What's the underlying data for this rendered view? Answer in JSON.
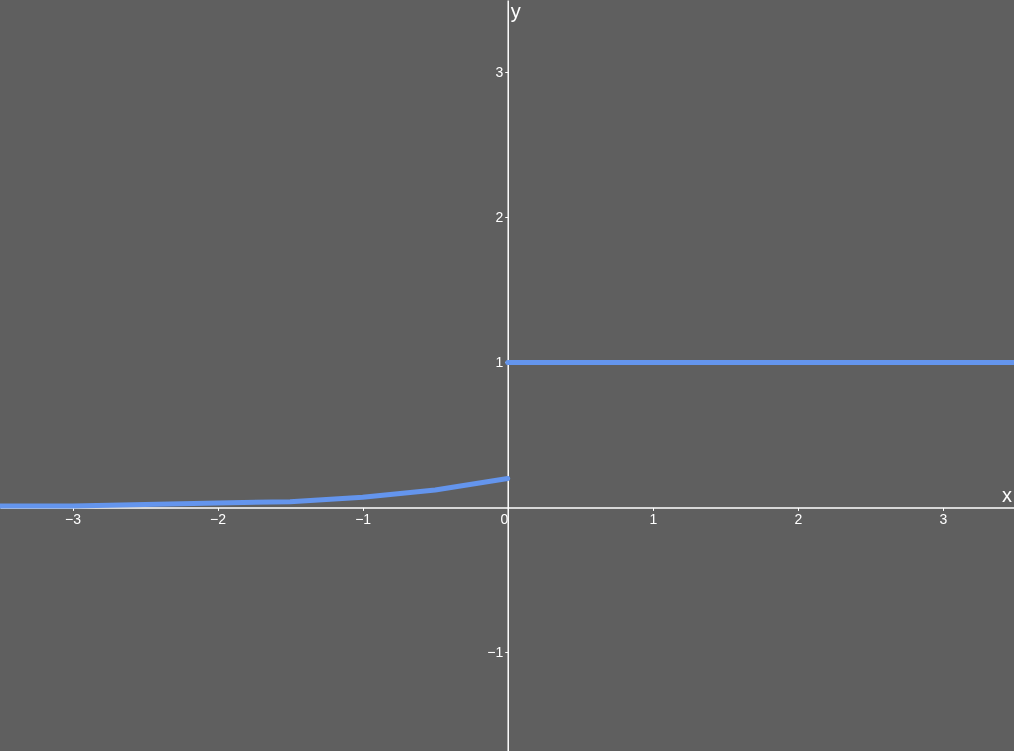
{
  "chart_data": {
    "type": "line",
    "xlabel": "x",
    "ylabel": "y",
    "xlim": [
      -3.5,
      3.49
    ],
    "ylim": [
      -1.68,
      3.5
    ],
    "xticks": [
      -3,
      -2,
      -1,
      0,
      1,
      2,
      3
    ],
    "yticks": [
      -1,
      1,
      2,
      3
    ],
    "series": [
      {
        "color": "#6495ed",
        "x": [
          -3.5,
          -3,
          -2.5,
          -2,
          -1.5,
          -1,
          -0.5,
          0
        ],
        "values": [
          0.01,
          0.01,
          0.02,
          0.03,
          0.04,
          0.07,
          0.12,
          0.2
        ]
      },
      {
        "color": "#6495ed",
        "x": [
          0,
          3.49
        ],
        "values": [
          1,
          1
        ]
      }
    ],
    "grid": false,
    "marker": "none",
    "line_style": "solid"
  }
}
